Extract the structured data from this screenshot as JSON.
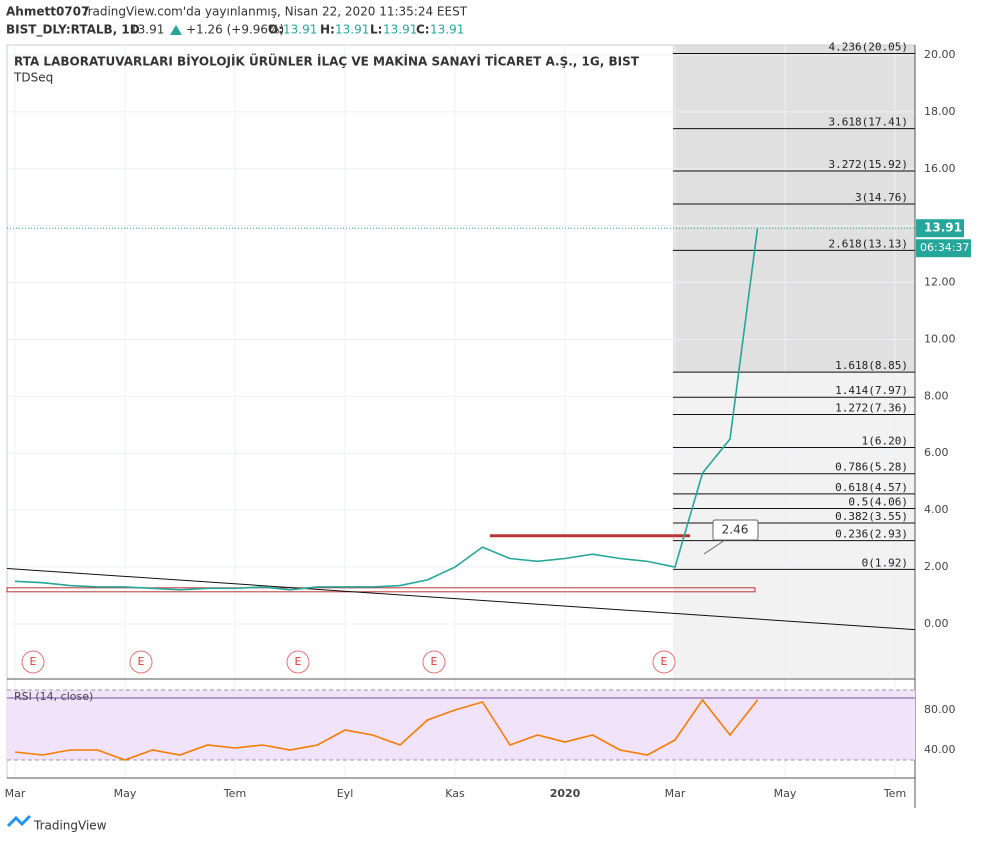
{
  "header": {
    "author": "Ahmett0707",
    "published": "TradingView.com'da yayınlanmış, Nisan 22, 2020 11:35:24 EEST",
    "symbol": "BIST_DLY:RTALB, 1D",
    "price": "13.91",
    "change": "+1.26 (+9.96%)",
    "o_label": "O:",
    "o": "13.91",
    "h_label": "H:",
    "h": "13.91",
    "l_label": "L:",
    "l": "13.91",
    "c_label": "C:",
    "c": "13.91"
  },
  "footer": "TradingView",
  "chart_data": [
    {
      "type": "line",
      "title": "RTA LABORATUVARLARI BİYOLOJİK ÜRÜNLER İLAÇ VE MAKİNA SANAYİ TİCARET A.Ş., 1G, BIST",
      "subtitle": "TDSeq",
      "categories": [
        "Mar",
        null,
        null,
        null,
        "May",
        null,
        null,
        null,
        "Tem",
        null,
        null,
        null,
        "Eyl",
        null,
        null,
        null,
        "Kas",
        null,
        null,
        null,
        "2020",
        null,
        null,
        null,
        "Mar",
        null,
        null,
        null,
        "May",
        null,
        null,
        null,
        "Tem"
      ],
      "series": [
        {
          "color": "#26a69a",
          "values": [
            1.5,
            1.45,
            1.35,
            1.3,
            1.3,
            1.25,
            1.2,
            1.25,
            1.25,
            1.3,
            1.2,
            1.3,
            1.3,
            1.3,
            1.35,
            1.55,
            2.0,
            2.7,
            2.3,
            2.2,
            2.3,
            2.45,
            2.3,
            2.2,
            2.0,
            5.3,
            6.5,
            13.91,
            null,
            null,
            null,
            null,
            null
          ]
        }
      ],
      "ylim": [
        -1.9,
        20.35
      ],
      "yticks": [
        {
          "value": 0,
          "label": "0.00"
        },
        {
          "value": 2,
          "label": "2.00"
        },
        {
          "value": 4,
          "label": "4.00"
        },
        {
          "value": 6,
          "label": "6.00"
        },
        {
          "value": 8,
          "label": "8.00"
        },
        {
          "value": 10,
          "label": "10.00"
        },
        {
          "value": 12,
          "label": "12.00"
        },
        {
          "value": 14,
          "label": "14.00"
        },
        {
          "value": 16,
          "label": "16.00"
        },
        {
          "value": 18,
          "label": "18.00"
        },
        {
          "value": 20,
          "label": "20.00"
        }
      ],
      "fib_levels": [
        {
          "value": 20.05,
          "label": "4.236(20.05)"
        },
        {
          "value": 17.41,
          "label": "3.618(17.41)"
        },
        {
          "value": 15.92,
          "label": "3.272(15.92)"
        },
        {
          "value": 14.76,
          "label": "3(14.76)"
        },
        {
          "value": 13.13,
          "label": "2.618(13.13)"
        },
        {
          "value": 8.85,
          "label": "1.618(8.85)"
        },
        {
          "value": 7.97,
          "label": "1.414(7.97)"
        },
        {
          "value": 7.36,
          "label": "1.272(7.36)"
        },
        {
          "value": 6.2,
          "label": "1(6.20)"
        },
        {
          "value": 5.28,
          "label": "0.786(5.28)"
        },
        {
          "value": 4.57,
          "label": "0.618(4.57)"
        },
        {
          "value": 4.06,
          "label": "0.5(4.06)"
        },
        {
          "value": 3.55,
          "label": "0.382(3.55)"
        },
        {
          "value": 2.93,
          "label": "0.236(2.93)"
        },
        {
          "value": 1.92,
          "label": "0(1.92)"
        }
      ],
      "last_price": {
        "value": 13.91,
        "label": "13.91"
      },
      "countdown": "06:34:37",
      "annotation": "2.46",
      "earnings": [
        "E",
        "E",
        "E",
        "E",
        "E"
      ]
    },
    {
      "type": "line",
      "title": "RSI (14, close)",
      "series": [
        {
          "color": "#f57c00",
          "values": [
            38,
            35,
            40,
            40,
            30,
            40,
            35,
            45,
            42,
            45,
            40,
            45,
            60,
            55,
            45,
            70,
            80,
            88,
            45,
            55,
            48,
            55,
            40,
            35,
            50,
            90,
            55,
            90,
            null,
            null,
            null,
            null,
            null
          ]
        }
      ],
      "ylim": [
        12,
        110
      ],
      "yticks": [
        {
          "value": 40,
          "label": "40.00"
        },
        {
          "value": 80,
          "label": "80.00"
        }
      ]
    }
  ]
}
